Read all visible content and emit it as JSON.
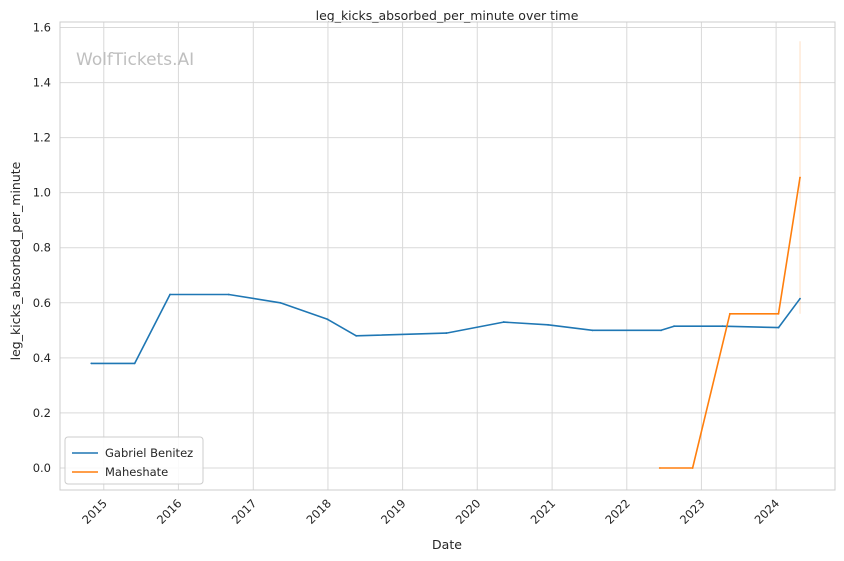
{
  "chart_data": {
    "type": "line",
    "title": "leg_kicks_absorbed_per_minute over time",
    "xlabel": "Date",
    "ylabel": "leg_kicks_absorbed_per_minute",
    "watermark": "WolfTickets.AI",
    "xlim": [
      "2014-06-01",
      "2024-10-15"
    ],
    "ylim": [
      -0.08,
      1.62
    ],
    "x_ticks": [
      {
        "date": "2015-01-01",
        "label": "2015"
      },
      {
        "date": "2016-01-01",
        "label": "2016"
      },
      {
        "date": "2017-01-01",
        "label": "2017"
      },
      {
        "date": "2018-01-01",
        "label": "2018"
      },
      {
        "date": "2019-01-01",
        "label": "2019"
      },
      {
        "date": "2020-01-01",
        "label": "2020"
      },
      {
        "date": "2021-01-01",
        "label": "2021"
      },
      {
        "date": "2022-01-01",
        "label": "2022"
      },
      {
        "date": "2023-01-01",
        "label": "2023"
      },
      {
        "date": "2024-01-01",
        "label": "2024"
      }
    ],
    "y_ticks": [
      {
        "value": 0.0,
        "label": "0.0"
      },
      {
        "value": 0.2,
        "label": "0.2"
      },
      {
        "value": 0.4,
        "label": "0.4"
      },
      {
        "value": 0.6,
        "label": "0.6"
      },
      {
        "value": 0.8,
        "label": "0.8"
      },
      {
        "value": 1.0,
        "label": "1.0"
      },
      {
        "value": 1.2,
        "label": "1.2"
      },
      {
        "value": 1.4,
        "label": "1.4"
      },
      {
        "value": 1.6,
        "label": "1.6"
      }
    ],
    "grid": true,
    "legend_position": "lower-left",
    "series": [
      {
        "name": "Gabriel Benitez",
        "color": "#1f77b4",
        "points": [
          {
            "x": "2014-11-01",
            "y": 0.38
          },
          {
            "x": "2015-06-01",
            "y": 0.38
          },
          {
            "x": "2015-11-21",
            "y": 0.63
          },
          {
            "x": "2016-09-03",
            "y": 0.63
          },
          {
            "x": "2017-05-13",
            "y": 0.6
          },
          {
            "x": "2017-12-30",
            "y": 0.54
          },
          {
            "x": "2018-05-19",
            "y": 0.48
          },
          {
            "x": "2019-08-03",
            "y": 0.49
          },
          {
            "x": "2020-05-09",
            "y": 0.53
          },
          {
            "x": "2020-12-12",
            "y": 0.52
          },
          {
            "x": "2021-07-17",
            "y": 0.5
          },
          {
            "x": "2022-06-18",
            "y": 0.5
          },
          {
            "x": "2022-08-20",
            "y": 0.515
          },
          {
            "x": "2023-04-15",
            "y": 0.515
          },
          {
            "x": "2024-01-13",
            "y": 0.51
          },
          {
            "x": "2024-04-27",
            "y": 0.615
          }
        ]
      },
      {
        "name": "Maheshate",
        "color": "#ff7f0e",
        "points": [
          {
            "x": "2022-06-11",
            "y": 0.0
          },
          {
            "x": "2022-11-19",
            "y": 0.0
          },
          {
            "x": "2023-05-20",
            "y": 0.56
          },
          {
            "x": "2024-01-13",
            "y": 0.56
          },
          {
            "x": "2024-04-27",
            "y": 1.055
          }
        ],
        "band": {
          "x": "2024-04-27",
          "low": 0.56,
          "high": 1.55
        }
      }
    ]
  }
}
